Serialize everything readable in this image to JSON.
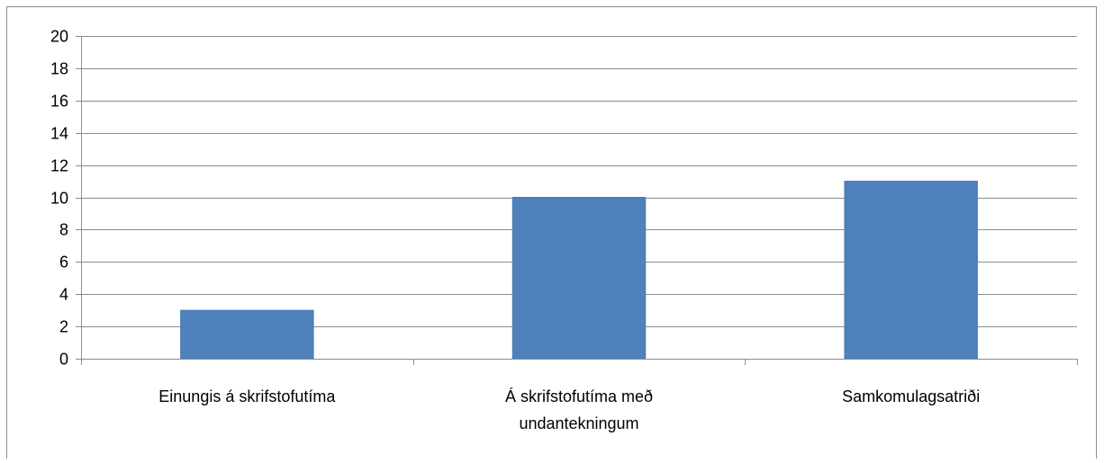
{
  "chart_data": {
    "type": "bar",
    "title": "",
    "xlabel": "",
    "ylabel": "",
    "categories": [
      [
        "Einungis á skrifstofutíma"
      ],
      [
        "Á skrifstofutíma með",
        "undantekningum"
      ],
      [
        "Samkomulagsatriði"
      ]
    ],
    "values": [
      3,
      10,
      11
    ],
    "ylim": [
      0,
      20
    ],
    "yticks": [
      "0",
      "2",
      "4",
      "6",
      "8",
      "10",
      "12",
      "14",
      "16",
      "18",
      "20"
    ],
    "grid": true,
    "legend": "none",
    "colors": {
      "bar": "#4f81bd",
      "bar_edge": "#4a7ab3",
      "grid": "#8c8c8c",
      "axis": "#8c8c8c",
      "frame": "#8c8c8c"
    }
  }
}
